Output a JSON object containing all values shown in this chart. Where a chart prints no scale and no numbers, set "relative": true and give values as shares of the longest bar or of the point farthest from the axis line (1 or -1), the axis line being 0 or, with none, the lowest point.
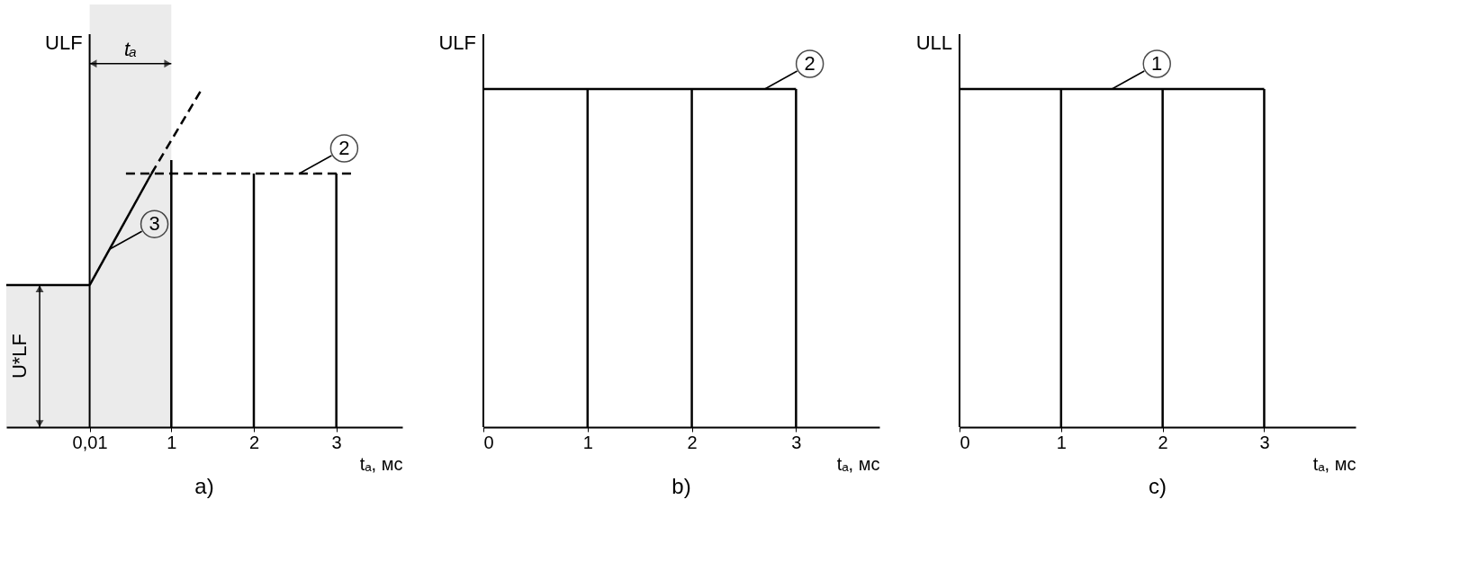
{
  "chart_data": [
    {
      "type": "line",
      "title": "a)",
      "xlabel": "tₐ, мс",
      "ylabel": "ULF",
      "relative": true,
      "xlim": [
        -1,
        3.8
      ],
      "xticks": [
        {
          "value": 0.01,
          "label": "0,01"
        },
        1,
        2,
        3
      ],
      "series": [
        {
          "color": "#000000",
          "x": [
            -1,
            0.01
          ],
          "values": [
            0.42,
            0.42
          ]
        },
        {
          "color": "#000000",
          "x": [
            0.01,
            0.76
          ],
          "values": [
            0.42,
            0.75
          ]
        },
        {
          "color": "#000000",
          "x": [
            0.76,
            1.37
          ],
          "values": [
            0.75,
            1
          ],
          "line_style": "dashed"
        },
        {
          "color": "#000000",
          "x": [
            0.45,
            3.2
          ],
          "values": [
            0.75,
            0.75
          ],
          "line_style": "dashed"
        },
        {
          "color": "#000000",
          "x": [
            1,
            1
          ],
          "values": [
            0,
            0.79
          ]
        },
        {
          "color": "#000000",
          "x": [
            2,
            2
          ],
          "values": [
            0,
            0.75
          ]
        },
        {
          "color": "#000000",
          "x": [
            3,
            3
          ],
          "values": [
            0,
            0.75
          ]
        }
      ],
      "bands": [
        {
          "axis": "x",
          "from": 0.01,
          "to": 1,
          "label": "tₐ"
        },
        {
          "axis": "y",
          "from": 0,
          "to": 0.42,
          "label": "U*LF"
        }
      ],
      "annotations": [
        {
          "text": "2",
          "x": 2.55,
          "y": 0.75
        },
        {
          "text": "3",
          "x": 0.25,
          "y": 0.526
        }
      ]
    },
    {
      "type": "line",
      "title": "b)",
      "xlabel": "tₐ, мс",
      "ylabel": "ULF",
      "relative": true,
      "xlim": [
        0,
        3.8
      ],
      "xticks": [
        0,
        1,
        2,
        3
      ],
      "series": [
        {
          "color": "#000000",
          "x": [
            0,
            3
          ],
          "values": [
            1,
            1
          ]
        },
        {
          "color": "#000000",
          "x": [
            1,
            1
          ],
          "values": [
            0,
            1
          ]
        },
        {
          "color": "#000000",
          "x": [
            2,
            2
          ],
          "values": [
            0,
            1
          ]
        },
        {
          "color": "#000000",
          "x": [
            3,
            3
          ],
          "values": [
            0,
            1
          ]
        }
      ],
      "annotations": [
        {
          "text": "2",
          "x": 2.7,
          "y": 1
        }
      ]
    },
    {
      "type": "line",
      "title": "c)",
      "xlabel": "tₐ, мс",
      "ylabel": "ULL",
      "relative": true,
      "xlim": [
        0,
        3.9
      ],
      "xticks": [
        0,
        1,
        2,
        3
      ],
      "series": [
        {
          "color": "#000000",
          "x": [
            0,
            3
          ],
          "values": [
            1,
            1
          ]
        },
        {
          "color": "#000000",
          "x": [
            1,
            1
          ],
          "values": [
            0,
            1
          ]
        },
        {
          "color": "#000000",
          "x": [
            2,
            2
          ],
          "values": [
            0,
            1
          ]
        },
        {
          "color": "#000000",
          "x": [
            3,
            3
          ],
          "values": [
            0,
            1
          ]
        }
      ],
      "annotations": [
        {
          "text": "1",
          "x": 1.5,
          "y": 1
        }
      ]
    }
  ]
}
